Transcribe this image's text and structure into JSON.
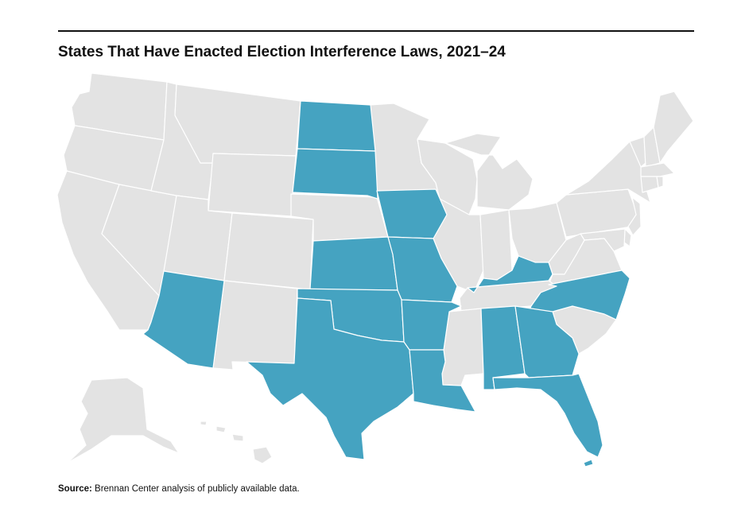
{
  "title": "States That Have Enacted Election Interference Laws, 2021–24",
  "source": {
    "label": "Source:",
    "text": "Brennan Center analysis of publicly available data."
  },
  "colors": {
    "enacted": "#45A3C1",
    "not_enacted": "#E3E3E3",
    "border": "#FFFFFF",
    "rule": "#111111"
  },
  "states_enacted": [
    "ND",
    "SD",
    "KS",
    "IA",
    "MO",
    "AR",
    "OK",
    "TX",
    "LA",
    "AZ",
    "KY",
    "NC",
    "AL",
    "GA",
    "FL"
  ]
}
